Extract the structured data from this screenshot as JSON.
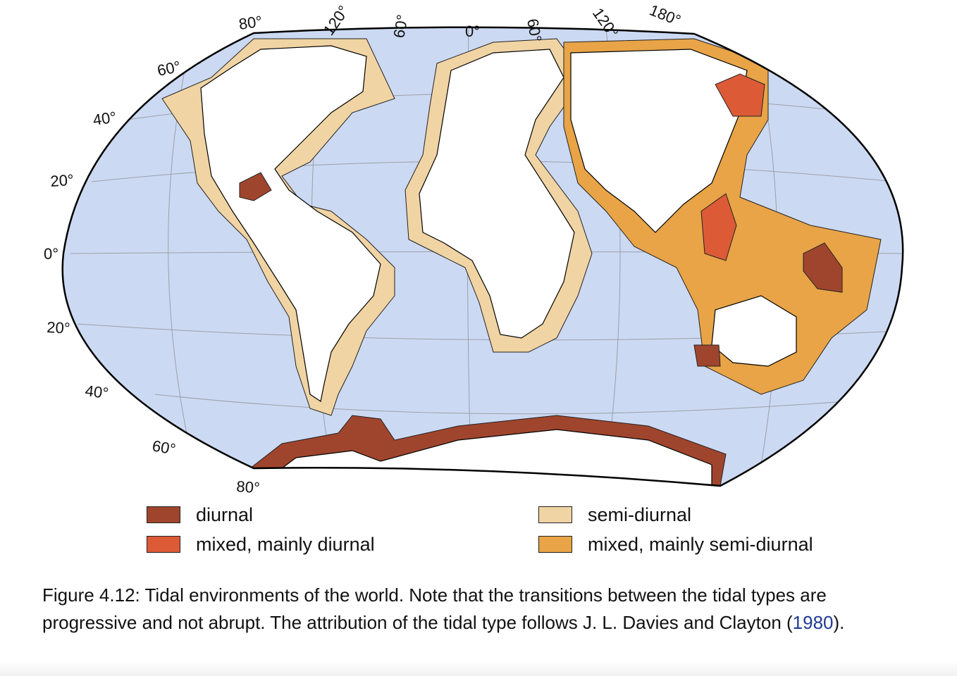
{
  "map": {
    "colors": {
      "ocean": "#ccd9f2",
      "land": "#ffffff",
      "graticule": "#9aa0a8",
      "coast": "#000000"
    },
    "lon_labels": [
      "80°",
      "120°",
      "60°",
      "0°",
      "60°",
      "120°",
      "180°"
    ],
    "lat_labels": [
      "60°",
      "40°",
      "20°",
      "0°",
      "20°",
      "40°",
      "60°",
      "80°"
    ]
  },
  "legend": {
    "items": [
      {
        "label": "diurnal",
        "color": "#a0452d"
      },
      {
        "label": "mixed, mainly diurnal",
        "color": "#dc5b36"
      },
      {
        "label": "semi-diurnal",
        "color": "#f1d4a4"
      },
      {
        "label": "mixed, mainly semi-diurnal",
        "color": "#e8a447"
      }
    ]
  },
  "caption": {
    "text": "Figure 4.12: Tidal environments of the world.  Note that the transitions between the tidal types are progressive and not abrupt.  The attribution of the tidal type follows J. L. Davies and Clayton (",
    "ref": "1980",
    "end": ")."
  }
}
